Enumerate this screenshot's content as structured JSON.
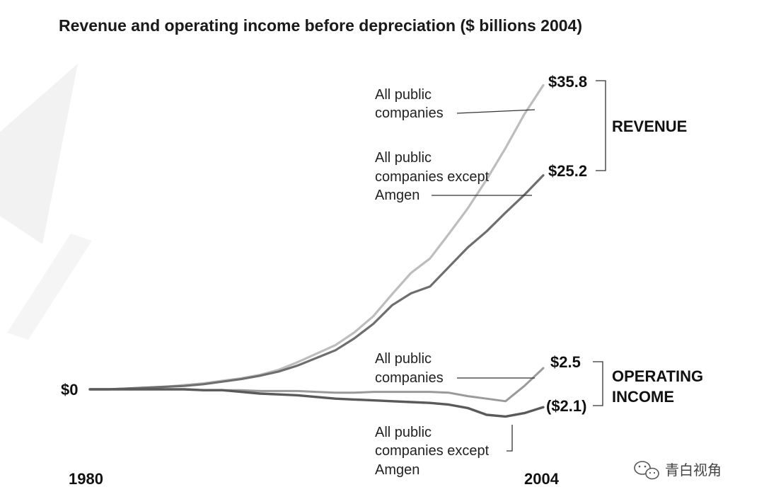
{
  "chart_data": {
    "type": "line",
    "title": "Revenue and operating income before depreciation ($ billions 2004)",
    "xlabel": "",
    "ylabel": "",
    "x_start_label": "1980",
    "x_end_label": "2004",
    "zero_label": "$0",
    "xlim": [
      1980,
      2004
    ],
    "ylim": [
      -3,
      37
    ],
    "x": [
      1980,
      1981,
      1982,
      1983,
      1984,
      1985,
      1986,
      1987,
      1988,
      1989,
      1990,
      1991,
      1992,
      1993,
      1994,
      1995,
      1996,
      1997,
      1998,
      1999,
      2000,
      2001,
      2002,
      2003,
      2004
    ],
    "series": [
      {
        "key": "rev_all",
        "name": "All public companies",
        "group": "REVENUE",
        "color": "#bdbdbd",
        "end_label": "$35.8",
        "values": [
          0.0,
          0.0,
          0.1,
          0.2,
          0.3,
          0.5,
          0.7,
          1.0,
          1.3,
          1.7,
          2.3,
          3.2,
          4.2,
          5.2,
          6.7,
          8.6,
          11.2,
          13.7,
          15.4,
          18.3,
          21.3,
          24.7,
          28.4,
          32.4,
          35.8
        ]
      },
      {
        "key": "rev_ex",
        "name": "All public companies except Amgen",
        "group": "REVENUE",
        "color": "#6e6e6e",
        "end_label": "$25.2",
        "values": [
          0.0,
          0.0,
          0.1,
          0.2,
          0.3,
          0.4,
          0.6,
          0.9,
          1.2,
          1.6,
          2.1,
          2.8,
          3.7,
          4.6,
          6.0,
          7.7,
          9.9,
          11.3,
          12.1,
          14.4,
          16.7,
          18.6,
          20.8,
          22.9,
          25.2
        ]
      },
      {
        "key": "oi_all",
        "name": "All public companies",
        "group": "OPERATING INCOME",
        "color": "#9a9a9a",
        "end_label": "$2.5",
        "values": [
          0.0,
          0.0,
          0.0,
          0.0,
          0.0,
          0.0,
          -0.1,
          -0.1,
          -0.1,
          -0.2,
          -0.2,
          -0.2,
          -0.3,
          -0.4,
          -0.4,
          -0.3,
          -0.3,
          -0.3,
          -0.3,
          -0.4,
          -0.8,
          -1.1,
          -1.4,
          0.4,
          2.5
        ]
      },
      {
        "key": "oi_ex",
        "name": "All public companies except Amgen",
        "group": "OPERATING INCOME",
        "color": "#5a5a5a",
        "end_label": "($2.1)",
        "values": [
          0.0,
          0.0,
          0.0,
          0.0,
          0.0,
          0.0,
          -0.1,
          -0.1,
          -0.3,
          -0.5,
          -0.6,
          -0.7,
          -0.9,
          -1.1,
          -1.2,
          -1.3,
          -1.4,
          -1.5,
          -1.6,
          -1.8,
          -2.2,
          -3.0,
          -3.2,
          -2.8,
          -2.1
        ]
      }
    ],
    "annotations": {
      "rev_all_label": [
        "All public",
        "companies"
      ],
      "rev_ex_label": [
        "All public",
        "companies except",
        "Amgen"
      ],
      "oi_all_label": [
        "All public",
        "companies"
      ],
      "oi_ex_label": [
        "All public",
        "companies except",
        "Amgen"
      ],
      "revenue_group": "REVENUE",
      "operating_income_group": [
        "OPERATING",
        "INCOME"
      ]
    }
  },
  "watermark": {
    "text": "青白视角",
    "icon": "wechat-icon"
  }
}
